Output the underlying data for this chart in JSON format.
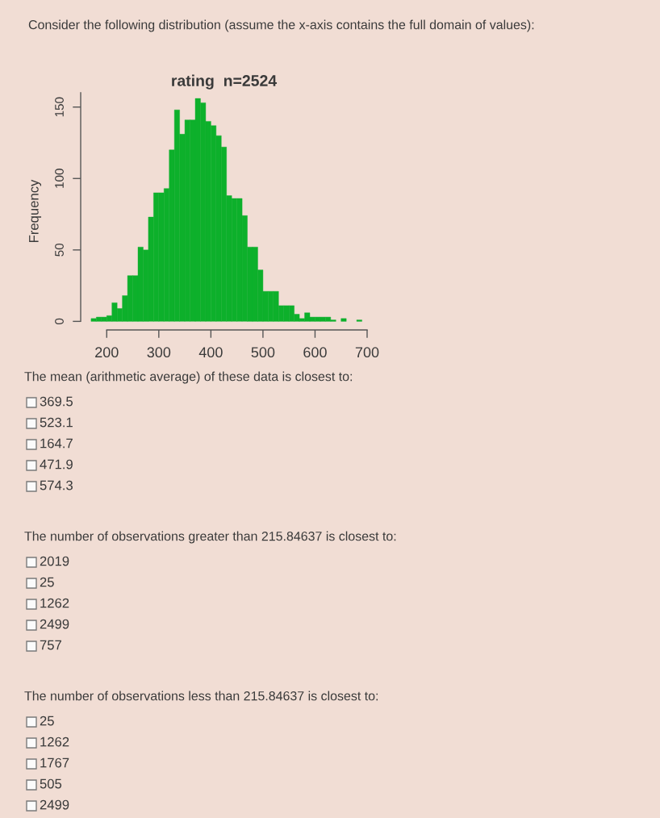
{
  "chart_data": {
    "type": "histogram",
    "title": "rating  n=2524",
    "ylabel": "Frequency",
    "bins": [
      170,
      180,
      190,
      200,
      210,
      220,
      230,
      240,
      250,
      260,
      270,
      280,
      290,
      300,
      310,
      320,
      330,
      340,
      350,
      360,
      370,
      380,
      390,
      400,
      410,
      420,
      430,
      440,
      450,
      460,
      470,
      480,
      490,
      500,
      510,
      520,
      530,
      540,
      550,
      560,
      570,
      580,
      590,
      600,
      610,
      620,
      630,
      640,
      650,
      660,
      670,
      680,
      690
    ],
    "values": [
      2,
      3,
      3,
      4,
      13,
      9,
      18,
      32,
      32,
      52,
      50,
      73,
      90,
      90,
      93,
      120,
      148,
      131,
      141,
      141,
      156,
      153,
      140,
      137,
      130,
      122,
      88,
      86,
      86,
      74,
      52,
      52,
      36,
      21,
      21,
      21,
      11,
      11,
      11,
      5,
      2,
      6,
      3,
      3,
      3,
      3,
      1,
      0,
      2,
      0,
      0,
      1
    ],
    "color": "#0db02b",
    "xlim": [
      150,
      700
    ],
    "ylim": [
      -6,
      160
    ],
    "xticks": [
      200,
      300,
      400,
      500,
      600,
      700
    ],
    "yticks": [
      0,
      50,
      100,
      150
    ],
    "annotations": [
      "Consider the following distribution (assume the x-axis contains the full domain of values):",
      "The mean (arithmetic average) of these data is closest to:",
      "369.5",
      "523.1",
      "164.7",
      "471.9",
      "574.3",
      "The number of observations greater than 215.84637 is closest to:",
      "2019",
      "25",
      "1262",
      "2499",
      "757",
      "The number of observations less than 215.84637 is closest to:",
      "25",
      "1262",
      "1767",
      "505",
      "2499"
    ]
  }
}
